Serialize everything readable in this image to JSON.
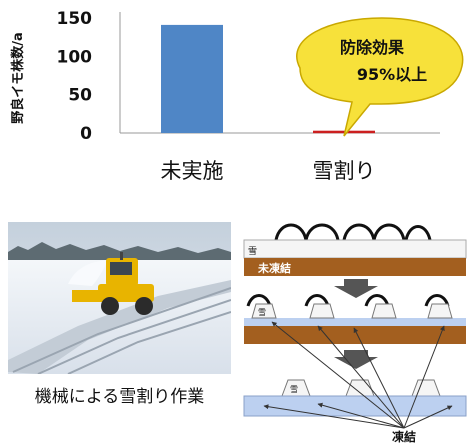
{
  "chart_data": {
    "type": "bar",
    "ylabel": "野良イモ株数/a",
    "ylim": [
      0,
      150
    ],
    "yticks": [
      0,
      50,
      100,
      150
    ],
    "categories": [
      "未実施",
      "雪割り"
    ],
    "values": [
      141,
      3
    ],
    "bar_colors": [
      "#4f86c6",
      "#cc1f1f"
    ],
    "annotation": {
      "line1": "防除効果",
      "line2": "95%以上",
      "fill": "#f7e13a",
      "points_to": "雪割り"
    },
    "grid": false,
    "legend": "none"
  },
  "photo": {
    "caption": "機械による雪割り作業",
    "vehicle_color": "#e8b400"
  },
  "diagram": {
    "snow_label": "雪",
    "unfrozen_label": "未凍結",
    "frozen_label": "凍結",
    "unfrozen_color": "#a35f1f",
    "frozen_color": "#bcd0f0",
    "arrow_color": "#555555"
  }
}
